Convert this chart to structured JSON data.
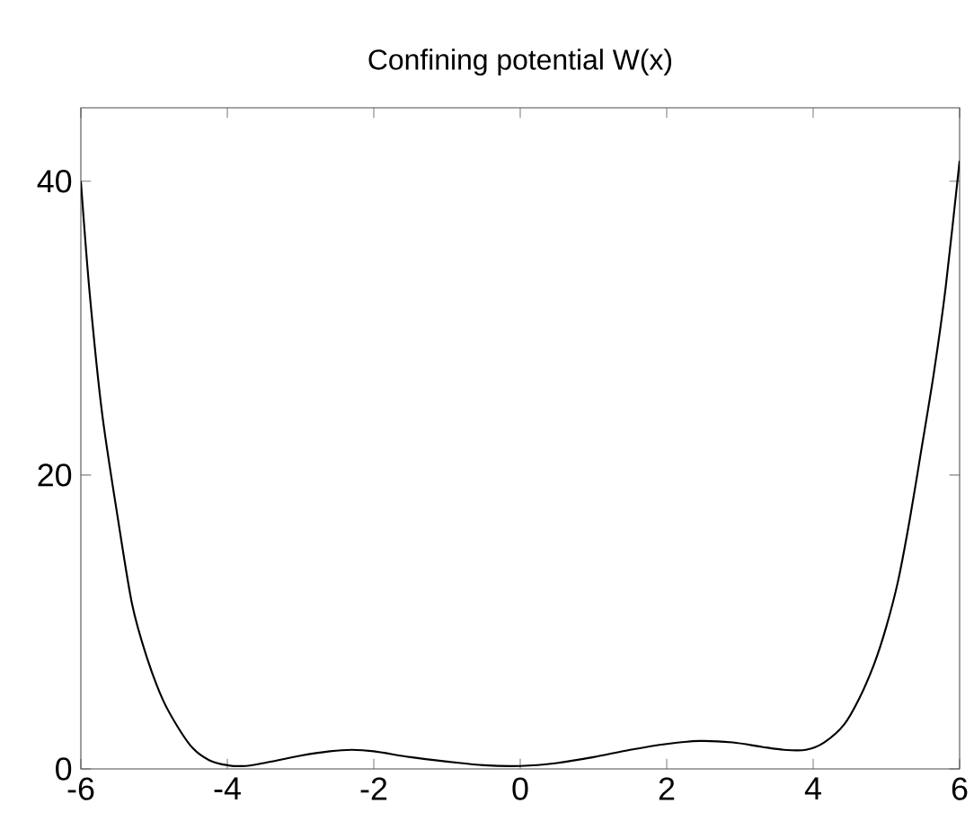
{
  "chart_data": {
    "type": "line",
    "title": "Confining potential W(x)",
    "x": [
      -6,
      -5.88,
      -5.71,
      -5.49,
      -5.3,
      -5.1,
      -4.88,
      -4.67,
      -4.47,
      -4.25,
      -4.0,
      -3.75,
      -3.5,
      -3,
      -2.6,
      -2.3,
      -2,
      -1.5,
      -1,
      -0.5,
      0,
      0.5,
      1,
      1.5,
      2,
      2.45,
      2.9,
      3.3,
      3.6,
      3.9,
      4.15,
      4.42,
      4.63,
      4.83,
      5.0,
      5.16,
      5.32,
      5.48,
      5.65,
      5.81,
      6
    ],
    "series": [
      {
        "color": "#000000",
        "values": [
          40,
          32.4,
          24.2,
          16.9,
          11.2,
          7.6,
          4.7,
          2.8,
          1.4,
          0.6,
          0.25,
          0.2,
          0.4,
          0.9,
          1.2,
          1.3,
          1.2,
          0.8,
          0.5,
          0.25,
          0.2,
          0.4,
          0.8,
          1.3,
          1.7,
          1.9,
          1.8,
          1.5,
          1.3,
          1.3,
          1.8,
          3.0,
          4.8,
          7.1,
          9.7,
          12.8,
          17,
          21.8,
          27,
          32.8,
          41.4
        ]
      }
    ],
    "xlim": [
      -6,
      6
    ],
    "ylim": [
      0,
      45
    ],
    "xticks": [
      -6,
      -4,
      -2,
      0,
      2,
      4,
      6
    ],
    "yticks": [
      0,
      20,
      40
    ],
    "grid": false,
    "marker": "none",
    "line_style": "solid"
  }
}
